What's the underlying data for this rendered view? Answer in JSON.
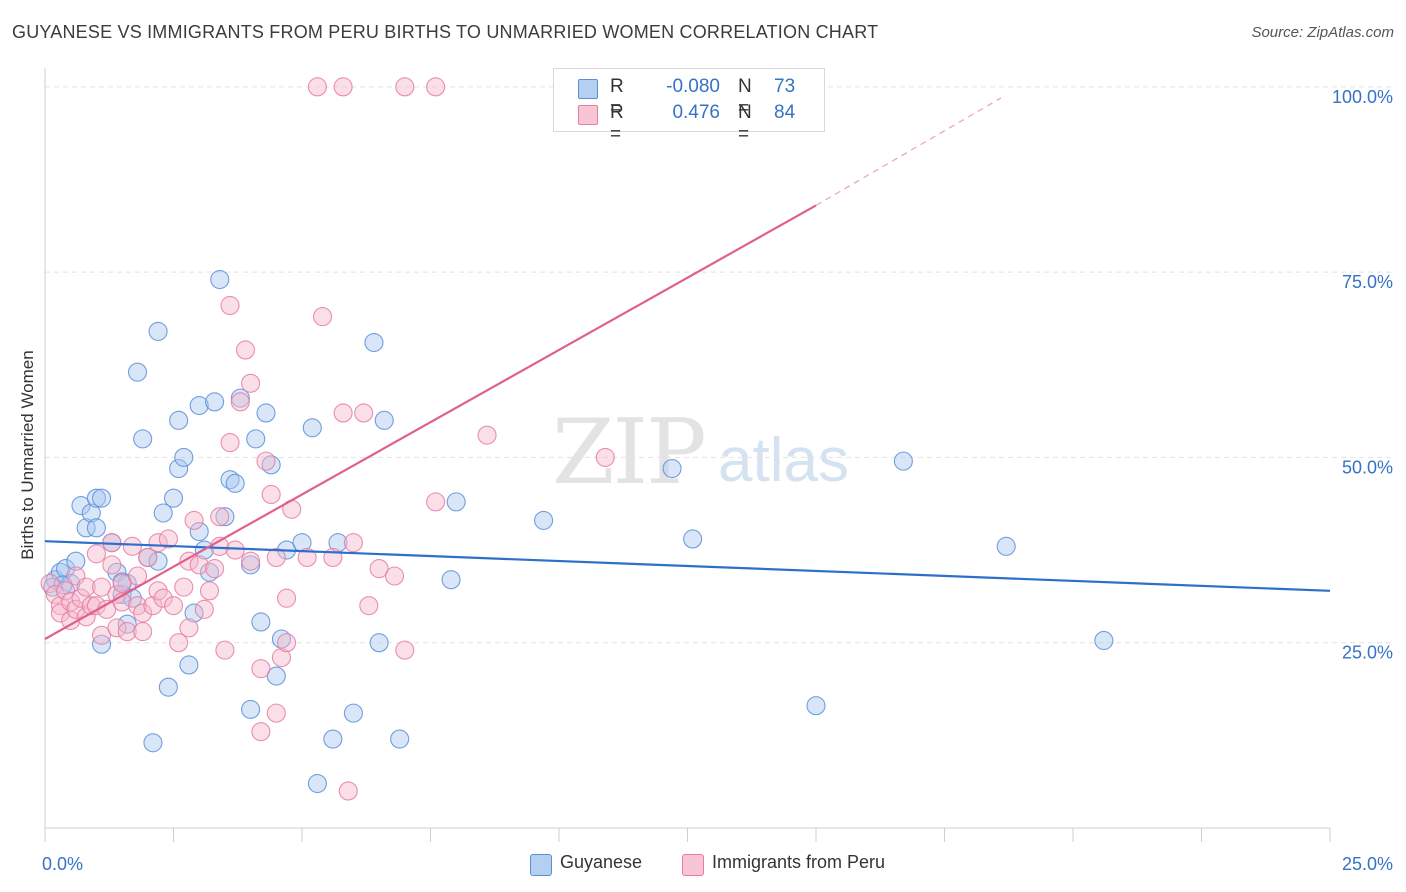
{
  "title": "GUYANESE VS IMMIGRANTS FROM PERU BIRTHS TO UNMARRIED WOMEN CORRELATION CHART",
  "source": "Source: ZipAtlas.com",
  "watermark": {
    "zip": "ZIP",
    "atlas": "atlas"
  },
  "colors": {
    "blue": "#5b8fd8",
    "pink": "#e87ba2",
    "blue_fill": "#a9c7f0",
    "pink_fill": "#f5b8cc",
    "blue_line": "#2f6fcc",
    "pink_line": "#e0608c",
    "value_text": "#3672c6"
  },
  "stats": [
    {
      "label": "R =",
      "r": "-0.080",
      "n_label": "N =",
      "n": "73"
    },
    {
      "label": "R =",
      "r": "0.476",
      "n_label": "N =",
      "n": "84"
    }
  ],
  "legend": {
    "blue": "Guyanese",
    "pink": "Immigrants from Peru"
  },
  "chart_data": {
    "type": "scatter",
    "title": "GUYANESE VS IMMIGRANTS FROM PERU BIRTHS TO UNMARRIED WOMEN CORRELATION CHART",
    "xlabel": "",
    "ylabel": "Births to Unmarried Women",
    "xlim": [
      0,
      25
    ],
    "ylim": [
      0,
      102
    ],
    "x_tick_labels": [
      {
        "value": 0,
        "label": "0.0%"
      },
      {
        "value": 25,
        "label": "25.0%"
      }
    ],
    "y_tick_labels": [
      {
        "value": 25,
        "label": "25.0%"
      },
      {
        "value": 50,
        "label": "50.0%"
      },
      {
        "value": 75,
        "label": "75.0%"
      },
      {
        "value": 100,
        "label": "100.0%"
      }
    ],
    "grid": true,
    "series": [
      {
        "name": "Guyanese",
        "r": -0.08,
        "n": 73,
        "trend": {
          "x0": 0,
          "y0": 38.7,
          "x1": 25,
          "y1": 32.0,
          "dashed_to": null
        },
        "points": [
          [
            0.2,
            33.5
          ],
          [
            0.3,
            34.5
          ],
          [
            0.4,
            35
          ],
          [
            0.5,
            33
          ],
          [
            0.6,
            36
          ],
          [
            0.7,
            43.5
          ],
          [
            0.8,
            40.5
          ],
          [
            0.9,
            42.5
          ],
          [
            1.0,
            40.5
          ],
          [
            1.0,
            44.5
          ],
          [
            1.1,
            44.5
          ],
          [
            1.1,
            24.8
          ],
          [
            1.3,
            38.5
          ],
          [
            1.4,
            34.5
          ],
          [
            1.6,
            33
          ],
          [
            1.5,
            31.5
          ],
          [
            1.7,
            31
          ],
          [
            1.6,
            27.5
          ],
          [
            1.8,
            61.5
          ],
          [
            1.9,
            52.5
          ],
          [
            2.0,
            36.5
          ],
          [
            2.2,
            36
          ],
          [
            2.1,
            11.5
          ],
          [
            2.2,
            67
          ],
          [
            2.3,
            42.5
          ],
          [
            2.4,
            19
          ],
          [
            2.5,
            44.5
          ],
          [
            2.6,
            55
          ],
          [
            2.6,
            48.5
          ],
          [
            2.7,
            50
          ],
          [
            2.8,
            22
          ],
          [
            2.9,
            29
          ],
          [
            3.0,
            57
          ],
          [
            3.0,
            40
          ],
          [
            3.1,
            37.5
          ],
          [
            3.2,
            34.5
          ],
          [
            3.3,
            57.5
          ],
          [
            3.4,
            74
          ],
          [
            3.5,
            42
          ],
          [
            3.6,
            47
          ],
          [
            3.7,
            46.5
          ],
          [
            3.8,
            58
          ],
          [
            4.0,
            35.5
          ],
          [
            4.1,
            52.5
          ],
          [
            4.0,
            16
          ],
          [
            4.2,
            27.8
          ],
          [
            4.3,
            56
          ],
          [
            4.4,
            49
          ],
          [
            4.5,
            20.5
          ],
          [
            4.6,
            25.5
          ],
          [
            4.7,
            37.5
          ],
          [
            5.0,
            38.5
          ],
          [
            5.2,
            54
          ],
          [
            5.3,
            6
          ],
          [
            5.6,
            12
          ],
          [
            5.7,
            38.5
          ],
          [
            6.0,
            15.5
          ],
          [
            6.4,
            65.5
          ],
          [
            6.5,
            25
          ],
          [
            6.6,
            55
          ],
          [
            6.9,
            12
          ],
          [
            7.9,
            33.5
          ],
          [
            8.0,
            44
          ],
          [
            9.7,
            41.5
          ],
          [
            12.2,
            48.5
          ],
          [
            12.6,
            39
          ],
          [
            15.0,
            16.5
          ],
          [
            16.7,
            49.5
          ],
          [
            18.7,
            38
          ],
          [
            20.6,
            25.3
          ],
          [
            0.15,
            32.5
          ],
          [
            0.35,
            32.8
          ],
          [
            1.5,
            33.2
          ]
        ]
      },
      {
        "name": "Immigrants from Peru",
        "r": 0.476,
        "n": 84,
        "trend": {
          "x0": 0,
          "y0": 25.5,
          "x1": 15.0,
          "y1": 84.0,
          "dashed_to": [
            18.6,
            98.5
          ]
        },
        "points": [
          [
            0.1,
            33
          ],
          [
            0.2,
            31.5
          ],
          [
            0.3,
            30
          ],
          [
            0.3,
            29
          ],
          [
            0.4,
            32
          ],
          [
            0.5,
            30.5
          ],
          [
            0.5,
            28
          ],
          [
            0.6,
            34
          ],
          [
            0.6,
            29.5
          ],
          [
            0.7,
            31
          ],
          [
            0.8,
            32.5
          ],
          [
            0.8,
            28.5
          ],
          [
            0.9,
            30
          ],
          [
            1.0,
            37
          ],
          [
            1.0,
            30
          ],
          [
            1.1,
            32.5
          ],
          [
            1.1,
            26
          ],
          [
            1.2,
            29.5
          ],
          [
            1.3,
            38.5
          ],
          [
            1.3,
            35.5
          ],
          [
            1.4,
            31.5
          ],
          [
            1.4,
            27
          ],
          [
            1.5,
            30.5
          ],
          [
            1.5,
            33
          ],
          [
            1.6,
            26.5
          ],
          [
            1.7,
            38
          ],
          [
            1.8,
            34
          ],
          [
            1.8,
            30
          ],
          [
            1.9,
            29
          ],
          [
            1.9,
            26.5
          ],
          [
            2.0,
            36.5
          ],
          [
            2.1,
            30
          ],
          [
            2.2,
            38.5
          ],
          [
            2.2,
            32
          ],
          [
            2.3,
            31
          ],
          [
            2.4,
            39
          ],
          [
            2.5,
            30
          ],
          [
            2.6,
            25
          ],
          [
            2.7,
            32.5
          ],
          [
            2.8,
            36
          ],
          [
            2.8,
            27
          ],
          [
            2.9,
            41.5
          ],
          [
            3.0,
            35.5
          ],
          [
            3.1,
            29.5
          ],
          [
            3.2,
            32
          ],
          [
            3.3,
            35
          ],
          [
            3.4,
            38
          ],
          [
            3.4,
            42
          ],
          [
            3.5,
            24
          ],
          [
            3.6,
            52
          ],
          [
            3.6,
            70.5
          ],
          [
            3.7,
            37.5
          ],
          [
            3.8,
            57.5
          ],
          [
            3.9,
            64.5
          ],
          [
            4.0,
            60
          ],
          [
            4.0,
            36
          ],
          [
            4.2,
            13
          ],
          [
            4.2,
            21.5
          ],
          [
            4.3,
            49.5
          ],
          [
            4.4,
            45
          ],
          [
            4.5,
            15.5
          ],
          [
            4.5,
            36.5
          ],
          [
            4.6,
            23
          ],
          [
            4.7,
            25
          ],
          [
            4.7,
            31
          ],
          [
            4.8,
            43
          ],
          [
            5.1,
            36.5
          ],
          [
            5.4,
            69
          ],
          [
            5.6,
            36.5
          ],
          [
            5.8,
            56
          ],
          [
            5.9,
            5
          ],
          [
            6.0,
            38.5
          ],
          [
            6.2,
            56
          ],
          [
            6.3,
            30
          ],
          [
            6.5,
            35
          ],
          [
            6.8,
            34
          ],
          [
            7.0,
            24
          ],
          [
            7.6,
            44
          ],
          [
            8.6,
            53
          ],
          [
            10.9,
            50
          ],
          [
            5.3,
            100
          ],
          [
            5.8,
            100
          ],
          [
            7.0,
            100
          ],
          [
            7.6,
            100
          ]
        ]
      }
    ]
  }
}
